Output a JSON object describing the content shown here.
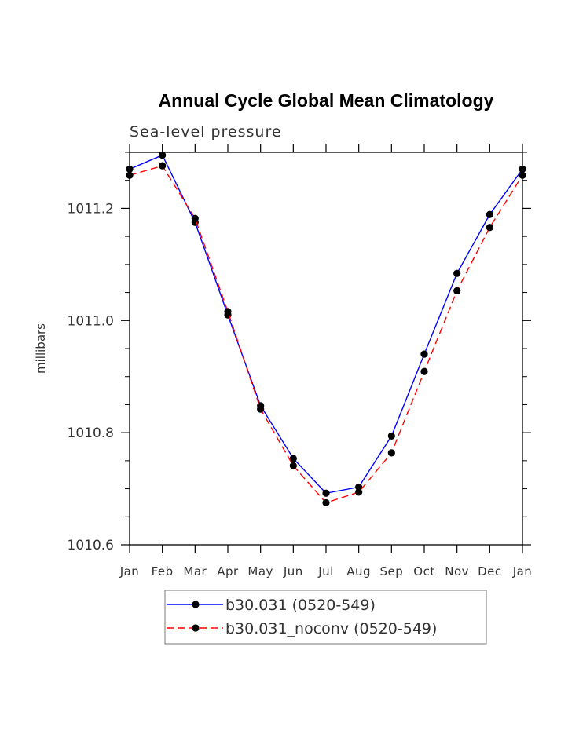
{
  "chart_data": {
    "type": "line",
    "title": "Annual Cycle Global Mean Climatology",
    "subtitle": "Sea-level pressure",
    "xlabel": "",
    "ylabel": "millibars",
    "categories": [
      "Jan",
      "Feb",
      "Mar",
      "Apr",
      "May",
      "Jun",
      "Jul",
      "Aug",
      "Sep",
      "Oct",
      "Nov",
      "Dec",
      "Jan"
    ],
    "ylim": [
      1010.6,
      1011.3
    ],
    "yticks": [
      1010.6,
      1010.8,
      1011.0,
      1011.2
    ],
    "ytick_labels": [
      "1010.6",
      "1010.8",
      "1011.0",
      "1011.2"
    ],
    "grid": false,
    "legend_position": "bottom",
    "series": [
      {
        "name": "b30.031 (0520-549)",
        "color": "#0000ff",
        "dash": "solid",
        "values": [
          1011.27,
          1011.295,
          1011.175,
          1011.01,
          1010.848,
          1010.754,
          1010.692,
          1010.703,
          1010.794,
          1010.94,
          1011.084,
          1011.189,
          1011.27
        ]
      },
      {
        "name": "b30.031_noconv (0520-549)",
        "color": "#ff0000",
        "dash": "dashed",
        "values": [
          1011.259,
          1011.276,
          1011.182,
          1011.016,
          1010.842,
          1010.741,
          1010.675,
          1010.694,
          1010.764,
          1010.909,
          1011.053,
          1011.166,
          1011.259
        ]
      }
    ]
  }
}
